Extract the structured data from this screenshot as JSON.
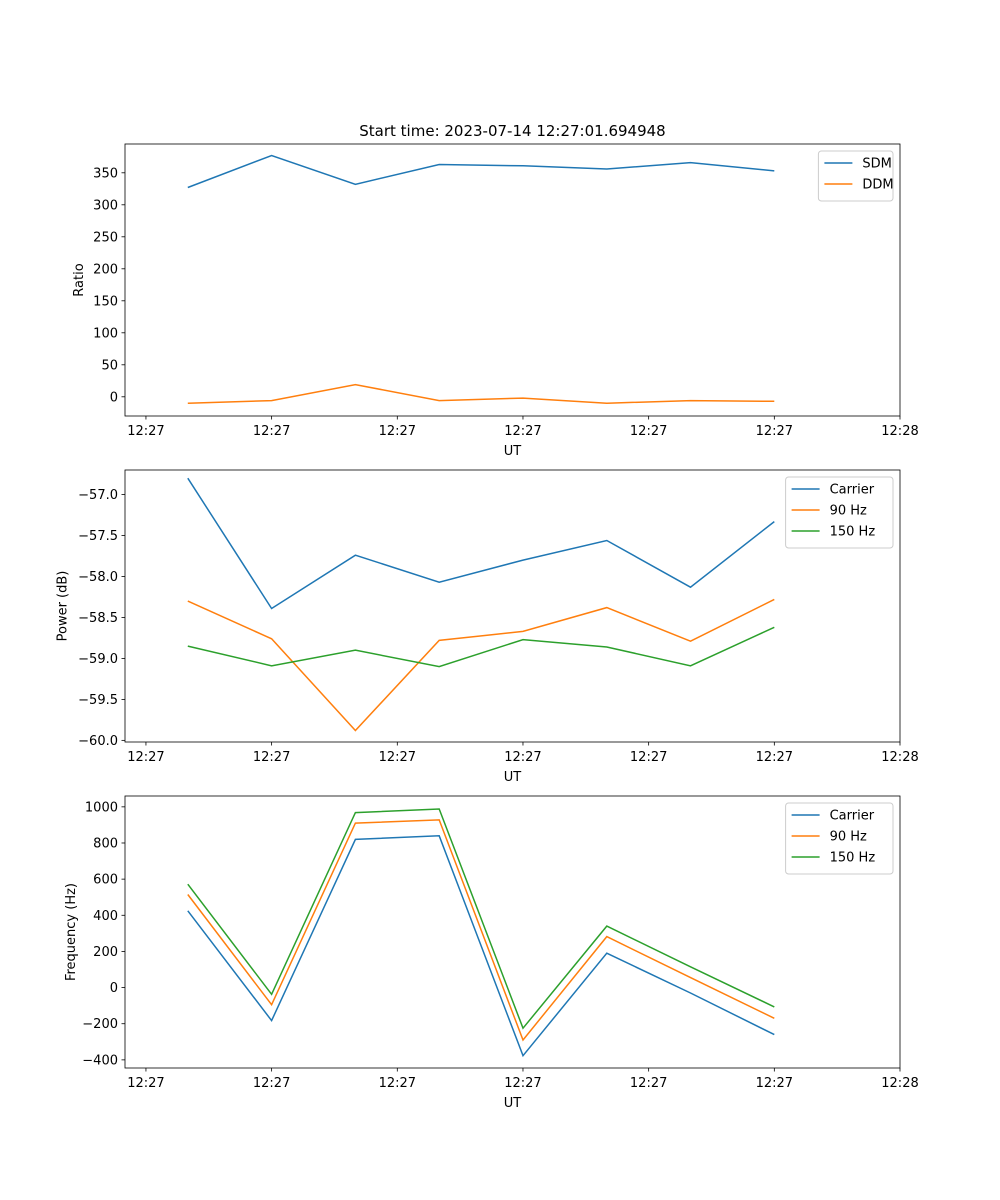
{
  "chart_data": [
    {
      "type": "line",
      "title": "Start time: 2023-07-14 12:27:01.694948",
      "xlabel": "UT",
      "ylabel": "Ratio",
      "x": [
        1,
        2,
        3,
        4,
        5,
        6,
        7,
        8
      ],
      "xlim": [
        0.25,
        9.5
      ],
      "xticks": [
        0.5,
        2.0,
        3.5,
        5.0,
        6.5,
        8.0,
        9.5
      ],
      "xticklabels": [
        "12:27",
        "12:27",
        "12:27",
        "12:27",
        "12:27",
        "12:27",
        "12:28"
      ],
      "ylim": [
        -30,
        395
      ],
      "yticks": [
        0,
        50,
        100,
        150,
        200,
        250,
        300,
        350
      ],
      "yticklabels": [
        "0",
        "50",
        "100",
        "150",
        "200",
        "250",
        "300",
        "350"
      ],
      "legend": "upper-right",
      "series": [
        {
          "name": "SDM",
          "color": "#1f77b4",
          "values": [
            327,
            377,
            332,
            363,
            361,
            356,
            366,
            353
          ]
        },
        {
          "name": "DDM",
          "color": "#ff7f0e",
          "values": [
            -10,
            -6,
            19,
            -6,
            -2,
            -10,
            -6,
            -7
          ]
        }
      ]
    },
    {
      "type": "line",
      "title": "",
      "xlabel": "UT",
      "ylabel": "Power (dB)",
      "x": [
        1,
        2,
        3,
        4,
        5,
        6,
        7,
        8
      ],
      "xlim": [
        0.25,
        9.5
      ],
      "xticks": [
        0.5,
        2.0,
        3.5,
        5.0,
        6.5,
        8.0,
        9.5
      ],
      "xticklabels": [
        "12:27",
        "12:27",
        "12:27",
        "12:27",
        "12:27",
        "12:27",
        "12:28"
      ],
      "ylim": [
        -60.02,
        -56.7
      ],
      "yticks": [
        -60.0,
        -59.5,
        -59.0,
        -58.5,
        -58.0,
        -57.5,
        -57.0
      ],
      "yticklabels": [
        "−60.0",
        "−59.5",
        "−59.0",
        "−58.5",
        "−58.0",
        "−57.5",
        "−57.0"
      ],
      "legend": "upper-right",
      "series": [
        {
          "name": "Carrier",
          "color": "#1f77b4",
          "values": [
            -56.8,
            -58.39,
            -57.74,
            -58.07,
            -57.8,
            -57.56,
            -58.13,
            -57.33
          ]
        },
        {
          "name": "90 Hz",
          "color": "#ff7f0e",
          "values": [
            -58.3,
            -58.76,
            -59.88,
            -58.78,
            -58.67,
            -58.38,
            -58.79,
            -58.28
          ]
        },
        {
          "name": "150 Hz",
          "color": "#2ca02c",
          "values": [
            -58.85,
            -59.09,
            -58.9,
            -59.1,
            -58.77,
            -58.86,
            -59.09,
            -58.62
          ]
        }
      ]
    },
    {
      "type": "line",
      "title": "",
      "xlabel": "UT",
      "ylabel": "Frequency (Hz)",
      "x": [
        1,
        2,
        3,
        4,
        5,
        6,
        7,
        8
      ],
      "xlim": [
        0.25,
        9.5
      ],
      "xticks": [
        0.5,
        2.0,
        3.5,
        5.0,
        6.5,
        8.0,
        9.5
      ],
      "xticklabels": [
        "12:27",
        "12:27",
        "12:27",
        "12:27",
        "12:27",
        "12:27",
        "12:28"
      ],
      "ylim": [
        -445,
        1060
      ],
      "yticks": [
        -400,
        -200,
        0,
        200,
        400,
        600,
        800,
        1000
      ],
      "yticklabels": [
        "−400",
        "−200",
        "0",
        "200",
        "400",
        "600",
        "800",
        "1000"
      ],
      "legend": "upper-right",
      "series": [
        {
          "name": "Carrier",
          "color": "#1f77b4",
          "values": [
            425,
            -183,
            820,
            840,
            -377,
            190,
            -30,
            -260
          ]
        },
        {
          "name": "90 Hz",
          "color": "#ff7f0e",
          "values": [
            515,
            -95,
            910,
            928,
            -290,
            282,
            55,
            -170
          ]
        },
        {
          "name": "150 Hz",
          "color": "#2ca02c",
          "values": [
            572,
            -37,
            968,
            988,
            -225,
            340,
            115,
            -107
          ]
        }
      ]
    }
  ]
}
